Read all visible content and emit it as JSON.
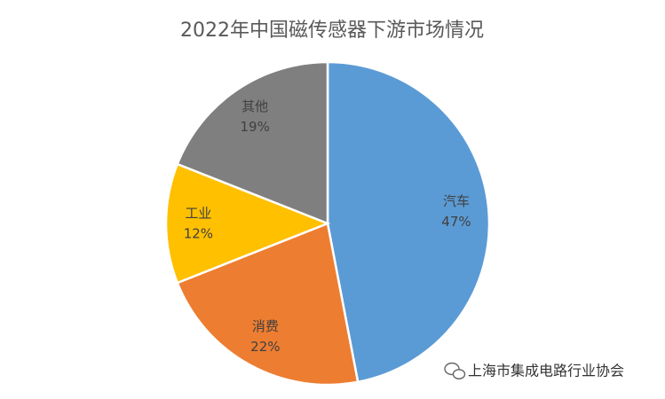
{
  "chart_data": {
    "type": "pie",
    "title": "2022年中国磁传感器下游市场情况",
    "categories": [
      "汽车",
      "消费",
      "工业",
      "其他"
    ],
    "values": [
      47,
      22,
      12,
      19
    ],
    "value_labels": [
      "47%",
      "22%",
      "12%",
      "19%"
    ],
    "colors": [
      "#5b9bd5",
      "#ed7d31",
      "#ffc000",
      "#7f7f7f"
    ]
  },
  "watermark": "上海市集成电路行业协会"
}
